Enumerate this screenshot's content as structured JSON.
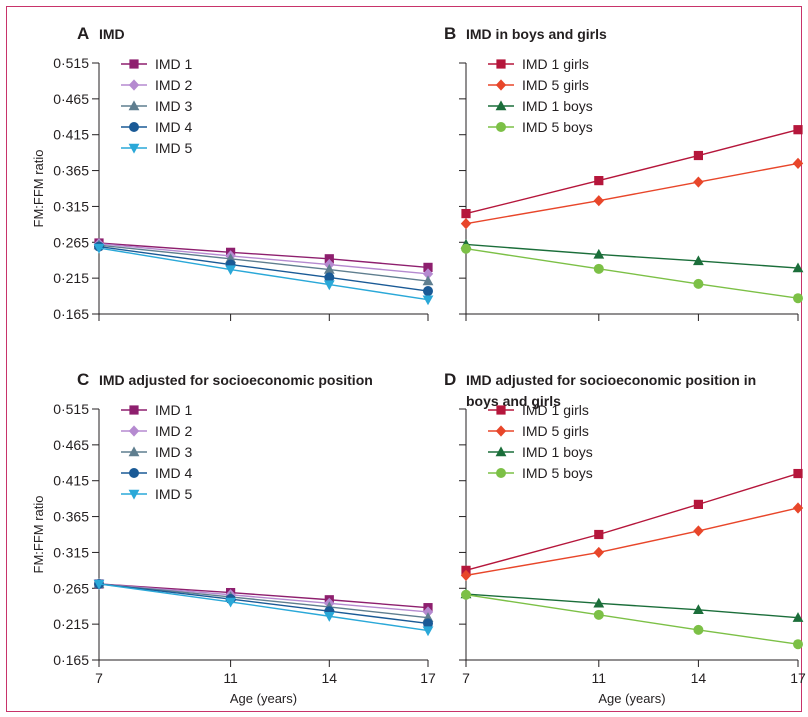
{
  "colors": {
    "imd1": "#8e1f6e",
    "imd2": "#b58ad0",
    "imd3": "#5f7e8f",
    "imd4": "#1a5a96",
    "imd5": "#2aa8d8",
    "girls1": "#b5163b",
    "girls5": "#e8462a",
    "boys1": "#1b6e3a",
    "boys5": "#7cc046",
    "frame": "#c8336a"
  },
  "chart_data": [
    {
      "type": "line",
      "letter": "A",
      "title": "IMD",
      "ylabel": "FM:FFM ratio",
      "xlabel": "",
      "x": [
        7,
        11,
        14,
        17
      ],
      "ylim": [
        0.165,
        0.515
      ],
      "yticks": [
        "0·515",
        "0·465",
        "0·415",
        "0·365",
        "0·315",
        "0·265",
        "0·215",
        "0·165"
      ],
      "xticks": [],
      "legend_position": "top-left",
      "series": [
        {
          "name": "IMD 1",
          "marker": "square",
          "color_key": "imd1",
          "values": [
            0.264,
            0.251,
            0.242,
            0.23
          ]
        },
        {
          "name": "IMD 2",
          "marker": "diamond",
          "color_key": "imd2",
          "values": [
            0.263,
            0.246,
            0.234,
            0.221
          ]
        },
        {
          "name": "IMD 3",
          "marker": "triangle-up",
          "color_key": "imd3",
          "values": [
            0.261,
            0.242,
            0.227,
            0.211
          ]
        },
        {
          "name": "IMD 4",
          "marker": "circle",
          "color_key": "imd4",
          "values": [
            0.259,
            0.234,
            0.216,
            0.197
          ]
        },
        {
          "name": "IMD 5",
          "marker": "triangle-down",
          "color_key": "imd5",
          "values": [
            0.257,
            0.227,
            0.206,
            0.185
          ]
        }
      ]
    },
    {
      "type": "line",
      "letter": "B",
      "title": "IMD in boys and girls",
      "ylabel": "",
      "xlabel": "",
      "x": [
        7,
        11,
        14,
        17
      ],
      "ylim": [
        0.165,
        0.515
      ],
      "yticks": [],
      "xticks": [],
      "legend_position": "top-left",
      "series": [
        {
          "name": "IMD 1 girls",
          "marker": "square",
          "color_key": "girls1",
          "values": [
            0.305,
            0.351,
            0.386,
            0.422
          ]
        },
        {
          "name": "IMD 5 girls",
          "marker": "diamond",
          "color_key": "girls5",
          "values": [
            0.291,
            0.323,
            0.349,
            0.375
          ]
        },
        {
          "name": "IMD 1 boys",
          "marker": "triangle-up",
          "color_key": "boys1",
          "values": [
            0.262,
            0.248,
            0.239,
            0.229
          ]
        },
        {
          "name": "IMD 5 boys",
          "marker": "circle",
          "color_key": "boys5",
          "values": [
            0.256,
            0.228,
            0.207,
            0.187
          ]
        }
      ]
    },
    {
      "type": "line",
      "letter": "C",
      "title": "IMD adjusted for socioeconomic position",
      "ylabel": "FM:FFM ratio",
      "xlabel": "Age (years)",
      "x": [
        7,
        11,
        14,
        17
      ],
      "ylim": [
        0.165,
        0.515
      ],
      "yticks": [
        "0·515",
        "0·465",
        "0·415",
        "0·365",
        "0·315",
        "0·265",
        "0·215",
        "0·165"
      ],
      "xticks": [
        "7",
        "11",
        "14",
        "17"
      ],
      "legend_position": "top-left",
      "series": [
        {
          "name": "IMD 1",
          "marker": "square",
          "color_key": "imd1",
          "values": [
            0.271,
            0.259,
            0.249,
            0.238
          ]
        },
        {
          "name": "IMD 2",
          "marker": "diamond",
          "color_key": "imd2",
          "values": [
            0.271,
            0.256,
            0.244,
            0.232
          ]
        },
        {
          "name": "IMD 3",
          "marker": "triangle-up",
          "color_key": "imd3",
          "values": [
            0.271,
            0.253,
            0.239,
            0.224
          ]
        },
        {
          "name": "IMD 4",
          "marker": "circle",
          "color_key": "imd4",
          "values": [
            0.271,
            0.25,
            0.233,
            0.216
          ]
        },
        {
          "name": "IMD 5",
          "marker": "triangle-down",
          "color_key": "imd5",
          "values": [
            0.271,
            0.246,
            0.226,
            0.206
          ]
        }
      ]
    },
    {
      "type": "line",
      "letter": "D",
      "title": "IMD adjusted for socioeconomic position in",
      "title2": "boys and girls",
      "ylabel": "",
      "xlabel": "Age (years)",
      "x": [
        7,
        11,
        14,
        17
      ],
      "ylim": [
        0.165,
        0.515
      ],
      "yticks": [],
      "xticks": [
        "7",
        "11",
        "14",
        "17"
      ],
      "legend_position": "top-left",
      "series": [
        {
          "name": "IMD 1 girls",
          "marker": "square",
          "color_key": "girls1",
          "values": [
            0.29,
            0.34,
            0.382,
            0.425
          ]
        },
        {
          "name": "IMD 5 girls",
          "marker": "diamond",
          "color_key": "girls5",
          "values": [
            0.283,
            0.315,
            0.345,
            0.377
          ]
        },
        {
          "name": "IMD 1 boys",
          "marker": "triangle-up",
          "color_key": "boys1",
          "values": [
            0.257,
            0.244,
            0.235,
            0.224
          ]
        },
        {
          "name": "IMD 5 boys",
          "marker": "circle",
          "color_key": "boys5",
          "values": [
            0.256,
            0.228,
            0.207,
            0.187
          ]
        }
      ]
    }
  ]
}
